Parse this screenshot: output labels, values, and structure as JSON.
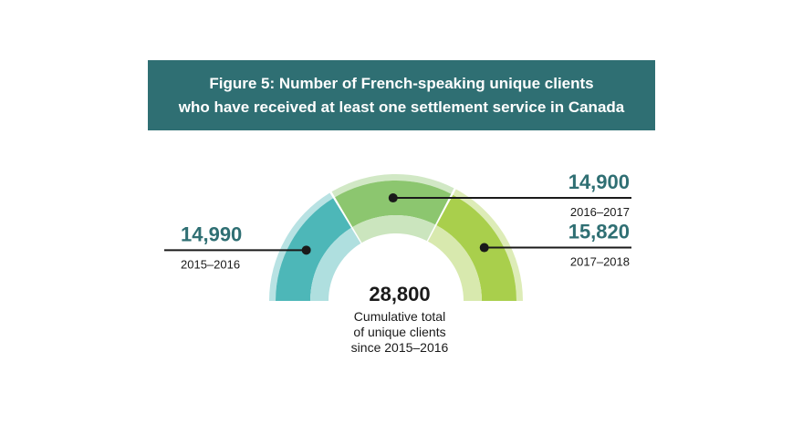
{
  "title": {
    "line1": "Figure 5: Number of French-speaking unique clients",
    "line2": "who have received at least one settlement service in Canada"
  },
  "chart_data": {
    "type": "pie",
    "subtype": "semi-donut",
    "categories": [
      "2015–2016",
      "2016–2017",
      "2017–2018"
    ],
    "values": [
      14990,
      14900,
      15820
    ],
    "value_labels": [
      "14,990",
      "14,900",
      "15,820"
    ],
    "colors": [
      "#4db7b8",
      "#8cc66f",
      "#a9cf4c"
    ],
    "total": {
      "value_label": "28,800",
      "caption": [
        "Cumulative total",
        "of unique clients",
        "since 2015–2016"
      ]
    }
  }
}
